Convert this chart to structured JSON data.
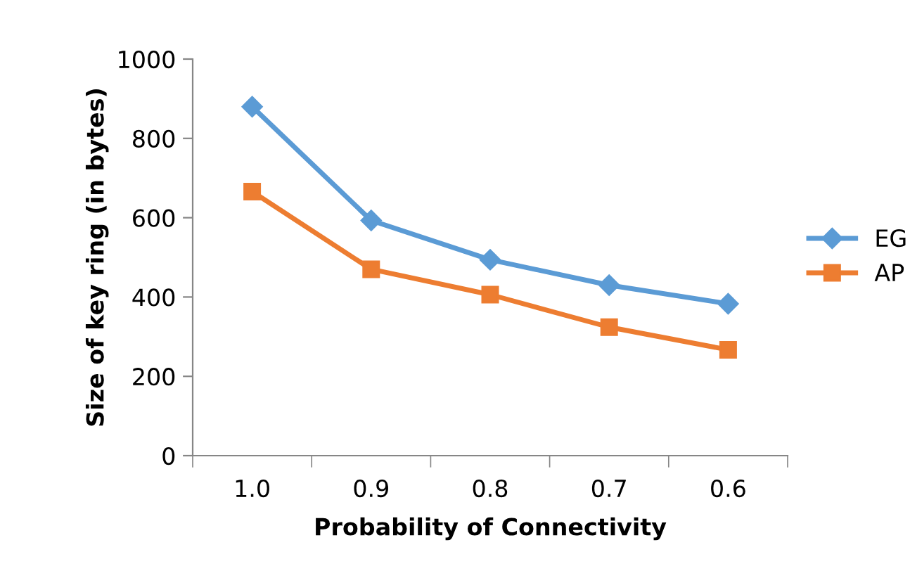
{
  "chart_data": {
    "type": "line",
    "xlabel": "Probability of Connectivity",
    "ylabel": "Size of key ring (in bytes)",
    "categories": [
      "1.0",
      "0.9",
      "0.8",
      "0.7",
      "0.6"
    ],
    "series": [
      {
        "name": "EG",
        "color": "#5b9bd5",
        "marker": "diamond",
        "values": [
          880,
          593,
          494,
          430,
          383
        ]
      },
      {
        "name": "AP",
        "color": "#ed7d31",
        "marker": "square",
        "values": [
          666,
          470,
          406,
          324,
          267
        ]
      }
    ],
    "ylim": [
      0,
      1000
    ],
    "yticks": [
      0,
      200,
      400,
      600,
      800,
      1000
    ],
    "grid": false,
    "legend": "right",
    "line_style": "solid"
  }
}
